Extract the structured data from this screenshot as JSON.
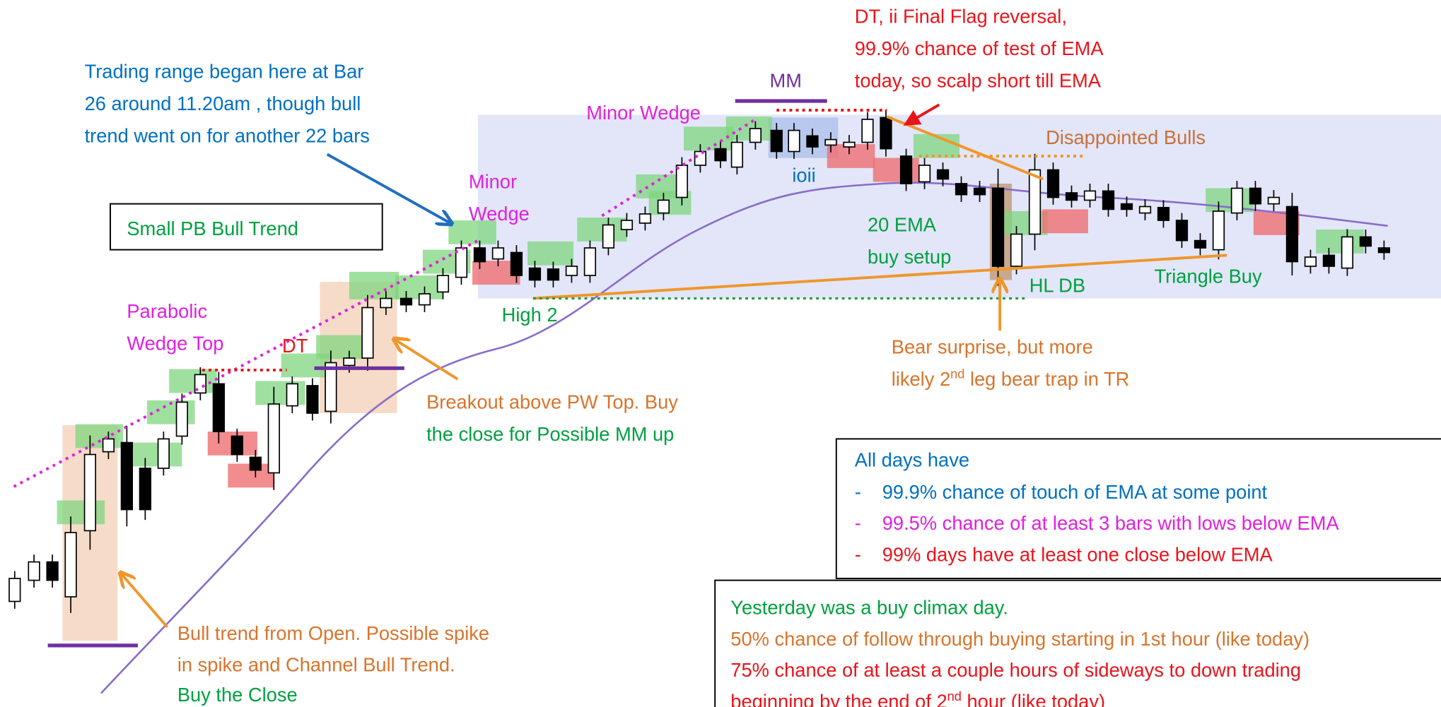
{
  "annotations": {
    "trading_range": [
      "Trading range began here at Bar",
      "26 around 11.20am , though bull",
      "trend went on for another 22 bars"
    ],
    "final_flag": [
      "DT, ii Final Flag reversal,",
      "99.9% chance of test of EMA",
      "today, so scalp short till EMA"
    ],
    "mm": "MM",
    "minor_wedge_top": "Minor Wedge",
    "disappointed_bulls": "Disappointed Bulls",
    "minor_wedge": [
      "Minor",
      "Wedge"
    ],
    "ioii": "ioii",
    "small_pb": "Small PB Bull Trend",
    "ema_setup": [
      "20 EMA",
      "buy setup"
    ],
    "hl_db": "HL DB",
    "triangle_buy": "Triangle Buy",
    "high2": "High 2",
    "parabolic": [
      "Parabolic",
      "Wedge Top"
    ],
    "dt": "DT",
    "bear_surprise": {
      "line1": "Bear surprise, but more",
      "line2_a": "likely 2",
      "line2_sup": "nd",
      "line2_b": " leg bear trap in TR"
    },
    "breakout": [
      "Breakout above PW Top. Buy",
      "the close for Possible MM up"
    ],
    "bull_open": [
      "Bull trend from Open. Possible spike",
      "in spike and Channel Bull Trend.",
      "Buy the Close"
    ]
  },
  "rules_box": {
    "heading": "All days have",
    "items": [
      {
        "bullet": "-",
        "text": "99.9% chance of touch of EMA at some point"
      },
      {
        "bullet": "-",
        "text": "99.5% chance of at least 3 bars with lows below EMA"
      },
      {
        "bullet": "-",
        "text": "99% days have at least one close below EMA"
      }
    ]
  },
  "climax_box": {
    "line1": "Yesterday was a buy climax day.",
    "line2": "50% chance of follow through buying starting in 1st hour (like today)",
    "line3": "75% chance of at least a couple hours of sideways to down trading",
    "line4_a": "beginning by the end of 2",
    "line4_sup": "nd",
    "line4_b": " hour (like today)"
  }
}
